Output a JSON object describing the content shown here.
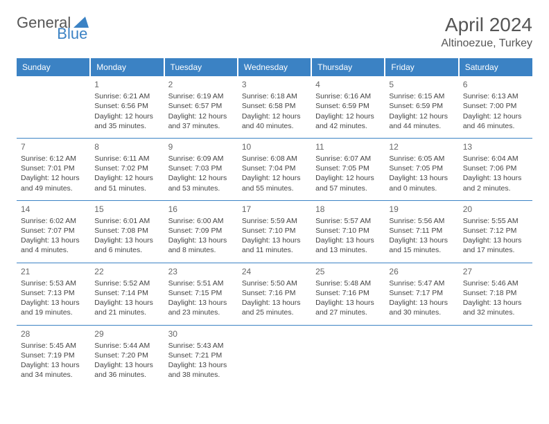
{
  "brand": {
    "general": "General",
    "blue": "Blue"
  },
  "title": "April 2024",
  "location": "Altinoezue, Turkey",
  "colors": {
    "accent": "#3b82c4",
    "text": "#444444",
    "bg": "#ffffff"
  },
  "headers": [
    "Sunday",
    "Monday",
    "Tuesday",
    "Wednesday",
    "Thursday",
    "Friday",
    "Saturday"
  ],
  "weeks": [
    [
      null,
      {
        "n": "1",
        "sr": "Sunrise: 6:21 AM",
        "ss": "Sunset: 6:56 PM",
        "d1": "Daylight: 12 hours",
        "d2": "and 35 minutes."
      },
      {
        "n": "2",
        "sr": "Sunrise: 6:19 AM",
        "ss": "Sunset: 6:57 PM",
        "d1": "Daylight: 12 hours",
        "d2": "and 37 minutes."
      },
      {
        "n": "3",
        "sr": "Sunrise: 6:18 AM",
        "ss": "Sunset: 6:58 PM",
        "d1": "Daylight: 12 hours",
        "d2": "and 40 minutes."
      },
      {
        "n": "4",
        "sr": "Sunrise: 6:16 AM",
        "ss": "Sunset: 6:59 PM",
        "d1": "Daylight: 12 hours",
        "d2": "and 42 minutes."
      },
      {
        "n": "5",
        "sr": "Sunrise: 6:15 AM",
        "ss": "Sunset: 6:59 PM",
        "d1": "Daylight: 12 hours",
        "d2": "and 44 minutes."
      },
      {
        "n": "6",
        "sr": "Sunrise: 6:13 AM",
        "ss": "Sunset: 7:00 PM",
        "d1": "Daylight: 12 hours",
        "d2": "and 46 minutes."
      }
    ],
    [
      {
        "n": "7",
        "sr": "Sunrise: 6:12 AM",
        "ss": "Sunset: 7:01 PM",
        "d1": "Daylight: 12 hours",
        "d2": "and 49 minutes."
      },
      {
        "n": "8",
        "sr": "Sunrise: 6:11 AM",
        "ss": "Sunset: 7:02 PM",
        "d1": "Daylight: 12 hours",
        "d2": "and 51 minutes."
      },
      {
        "n": "9",
        "sr": "Sunrise: 6:09 AM",
        "ss": "Sunset: 7:03 PM",
        "d1": "Daylight: 12 hours",
        "d2": "and 53 minutes."
      },
      {
        "n": "10",
        "sr": "Sunrise: 6:08 AM",
        "ss": "Sunset: 7:04 PM",
        "d1": "Daylight: 12 hours",
        "d2": "and 55 minutes."
      },
      {
        "n": "11",
        "sr": "Sunrise: 6:07 AM",
        "ss": "Sunset: 7:05 PM",
        "d1": "Daylight: 12 hours",
        "d2": "and 57 minutes."
      },
      {
        "n": "12",
        "sr": "Sunrise: 6:05 AM",
        "ss": "Sunset: 7:05 PM",
        "d1": "Daylight: 13 hours",
        "d2": "and 0 minutes."
      },
      {
        "n": "13",
        "sr": "Sunrise: 6:04 AM",
        "ss": "Sunset: 7:06 PM",
        "d1": "Daylight: 13 hours",
        "d2": "and 2 minutes."
      }
    ],
    [
      {
        "n": "14",
        "sr": "Sunrise: 6:02 AM",
        "ss": "Sunset: 7:07 PM",
        "d1": "Daylight: 13 hours",
        "d2": "and 4 minutes."
      },
      {
        "n": "15",
        "sr": "Sunrise: 6:01 AM",
        "ss": "Sunset: 7:08 PM",
        "d1": "Daylight: 13 hours",
        "d2": "and 6 minutes."
      },
      {
        "n": "16",
        "sr": "Sunrise: 6:00 AM",
        "ss": "Sunset: 7:09 PM",
        "d1": "Daylight: 13 hours",
        "d2": "and 8 minutes."
      },
      {
        "n": "17",
        "sr": "Sunrise: 5:59 AM",
        "ss": "Sunset: 7:10 PM",
        "d1": "Daylight: 13 hours",
        "d2": "and 11 minutes."
      },
      {
        "n": "18",
        "sr": "Sunrise: 5:57 AM",
        "ss": "Sunset: 7:10 PM",
        "d1": "Daylight: 13 hours",
        "d2": "and 13 minutes."
      },
      {
        "n": "19",
        "sr": "Sunrise: 5:56 AM",
        "ss": "Sunset: 7:11 PM",
        "d1": "Daylight: 13 hours",
        "d2": "and 15 minutes."
      },
      {
        "n": "20",
        "sr": "Sunrise: 5:55 AM",
        "ss": "Sunset: 7:12 PM",
        "d1": "Daylight: 13 hours",
        "d2": "and 17 minutes."
      }
    ],
    [
      {
        "n": "21",
        "sr": "Sunrise: 5:53 AM",
        "ss": "Sunset: 7:13 PM",
        "d1": "Daylight: 13 hours",
        "d2": "and 19 minutes."
      },
      {
        "n": "22",
        "sr": "Sunrise: 5:52 AM",
        "ss": "Sunset: 7:14 PM",
        "d1": "Daylight: 13 hours",
        "d2": "and 21 minutes."
      },
      {
        "n": "23",
        "sr": "Sunrise: 5:51 AM",
        "ss": "Sunset: 7:15 PM",
        "d1": "Daylight: 13 hours",
        "d2": "and 23 minutes."
      },
      {
        "n": "24",
        "sr": "Sunrise: 5:50 AM",
        "ss": "Sunset: 7:16 PM",
        "d1": "Daylight: 13 hours",
        "d2": "and 25 minutes."
      },
      {
        "n": "25",
        "sr": "Sunrise: 5:48 AM",
        "ss": "Sunset: 7:16 PM",
        "d1": "Daylight: 13 hours",
        "d2": "and 27 minutes."
      },
      {
        "n": "26",
        "sr": "Sunrise: 5:47 AM",
        "ss": "Sunset: 7:17 PM",
        "d1": "Daylight: 13 hours",
        "d2": "and 30 minutes."
      },
      {
        "n": "27",
        "sr": "Sunrise: 5:46 AM",
        "ss": "Sunset: 7:18 PM",
        "d1": "Daylight: 13 hours",
        "d2": "and 32 minutes."
      }
    ],
    [
      {
        "n": "28",
        "sr": "Sunrise: 5:45 AM",
        "ss": "Sunset: 7:19 PM",
        "d1": "Daylight: 13 hours",
        "d2": "and 34 minutes."
      },
      {
        "n": "29",
        "sr": "Sunrise: 5:44 AM",
        "ss": "Sunset: 7:20 PM",
        "d1": "Daylight: 13 hours",
        "d2": "and 36 minutes."
      },
      {
        "n": "30",
        "sr": "Sunrise: 5:43 AM",
        "ss": "Sunset: 7:21 PM",
        "d1": "Daylight: 13 hours",
        "d2": "and 38 minutes."
      },
      null,
      null,
      null,
      null
    ]
  ]
}
